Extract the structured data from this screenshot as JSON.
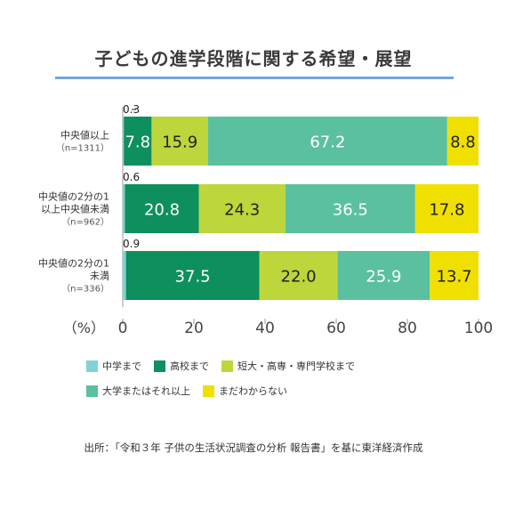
{
  "title": "子どもの進学段階に関する希望・展望",
  "footer": "出所：「令和３年 子供の生活状況調査の分析 報告書」を基に東洋経済作成",
  "colors": {
    "accent_rule": "#6fa8dc",
    "chugaku": "#7fd3d6",
    "koko": "#0e8f5e",
    "tandai": "#bcd63b",
    "daigaku": "#5ac0a0",
    "wakaranai": "#f0e000"
  },
  "chart_data": {
    "type": "bar",
    "orientation": "horizontal",
    "stacked": true,
    "title": "子どもの進学段階に関する希望・展望",
    "xlabel": "（%）",
    "xlim": [
      0,
      100
    ],
    "xticks": [
      "0",
      "20",
      "40",
      "60",
      "80",
      "100"
    ],
    "categories": [
      {
        "lines": [
          "中央値以上"
        ],
        "n": "（n=1311）"
      },
      {
        "lines": [
          "中央値の2分の1",
          "以上中央値未満"
        ],
        "n": "（n=962）"
      },
      {
        "lines": [
          "中央値の2分の1",
          "未満"
        ],
        "n": "（n=336）"
      }
    ],
    "series": [
      {
        "name": "中学まで",
        "color": "#7fd3d6",
        "values": [
          0.3,
          0.6,
          0.9
        ],
        "labels": [
          "0.3",
          "0.6",
          "0.9"
        ]
      },
      {
        "name": "高校まで",
        "color": "#0e8f5e",
        "values": [
          7.8,
          20.8,
          37.5
        ],
        "labels": [
          "7.8",
          "20.8",
          "37.5"
        ]
      },
      {
        "name": "短大・高専・専門学校まで",
        "color": "#bcd63b",
        "values": [
          15.9,
          24.3,
          22.0
        ],
        "labels": [
          "15.9",
          "24.3",
          "22.0"
        ]
      },
      {
        "name": "大学またはそれ以上",
        "color": "#5ac0a0",
        "values": [
          67.2,
          36.5,
          25.9
        ],
        "labels": [
          "67.2",
          "36.5",
          "25.9"
        ]
      },
      {
        "name": "まだわからない",
        "color": "#f0e000",
        "values": [
          8.8,
          17.8,
          13.7
        ],
        "labels": [
          "8.8",
          "17.8",
          "13.7"
        ]
      }
    ],
    "legend": {
      "placement": "bottom",
      "rows": [
        [
          0,
          1,
          2
        ],
        [
          3,
          4
        ]
      ]
    }
  }
}
